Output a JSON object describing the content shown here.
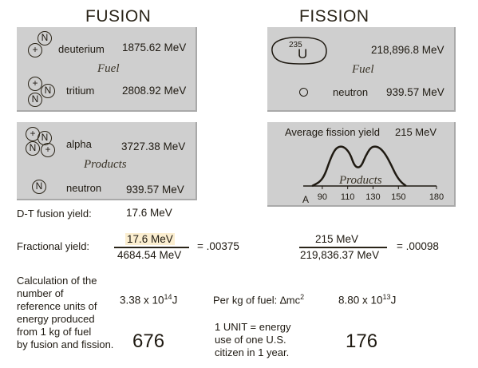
{
  "headings": {
    "fusion": "FUSION",
    "fission": "FISSION"
  },
  "fusion_fuel": {
    "deuterium_label": "deuterium",
    "deuterium_value": "1875.62 MeV",
    "fuel_label": "Fuel",
    "tritium_label": "tritium",
    "tritium_value": "2808.92 MeV",
    "particles": [
      "N",
      "+",
      "+",
      "N",
      "N"
    ]
  },
  "fission_fuel": {
    "isotope_mass": "235",
    "isotope_symbol": "U",
    "uranium_value": "218,896.8 MeV",
    "fuel_label": "Fuel",
    "neutron_label": "neutron",
    "neutron_value": "939.57 MeV"
  },
  "fusion_products": {
    "alpha_label": "alpha",
    "alpha_value": "3727.38 MeV",
    "products_label": "Products",
    "neutron_symbol": "N",
    "neutron_label": "neutron",
    "neutron_value": "939.57 MeV",
    "alpha_particles": [
      "+",
      "N",
      "N",
      "+"
    ]
  },
  "fission_products": {
    "title": "Average fission yield",
    "title_value": "215 MeV",
    "products_label": "Products",
    "axis_start_label": "A",
    "ticks": [
      "90",
      "110",
      "130",
      "150",
      "180"
    ],
    "curve": {
      "x_range": [
        75,
        180
      ],
      "points": [
        [
          82,
          0
        ],
        [
          88,
          5
        ],
        [
          92,
          14
        ],
        [
          96,
          33
        ],
        [
          100,
          47
        ],
        [
          104,
          51
        ],
        [
          108,
          49
        ],
        [
          112,
          41
        ],
        [
          115,
          27
        ],
        [
          118,
          23
        ],
        [
          121,
          26
        ],
        [
          124,
          38
        ],
        [
          128,
          49
        ],
        [
          132,
          51
        ],
        [
          136,
          48
        ],
        [
          140,
          40
        ],
        [
          144,
          28
        ],
        [
          148,
          14
        ],
        [
          152,
          5
        ],
        [
          156,
          0
        ]
      ]
    }
  },
  "dt_yield": {
    "label": "D-T fusion yield:",
    "value": "17.6  MeV"
  },
  "fractional": {
    "label": "Fractional yield:",
    "fusion_numerator": "17.6  MeV",
    "fusion_denominator": "4684.54  MeV",
    "fusion_result": "= .00375",
    "fission_numerator": "215  MeV",
    "fission_denominator": "219,836.37  MeV",
    "fission_result": "= .00098"
  },
  "calculation": {
    "description_lines": [
      "Calculation of the",
      "number of",
      "reference units of",
      "energy produced",
      "from 1 kg of fuel",
      "by fusion and fission."
    ],
    "fusion_energy_base": "3.38 x 10",
    "fusion_energy_exp": "14",
    "fusion_energy_unit": "J",
    "per_kg_label": "Per kg of fuel: ∆mc",
    "per_kg_exp": "2",
    "fission_energy_base": "8.80 x 10",
    "fission_energy_exp": "13",
    "fission_energy_unit": "J",
    "fusion_units": "676",
    "fission_units": "176",
    "unit_def_lines": [
      "1 UNIT = energy",
      "use of one U.S.",
      "citizen in 1 year."
    ]
  }
}
